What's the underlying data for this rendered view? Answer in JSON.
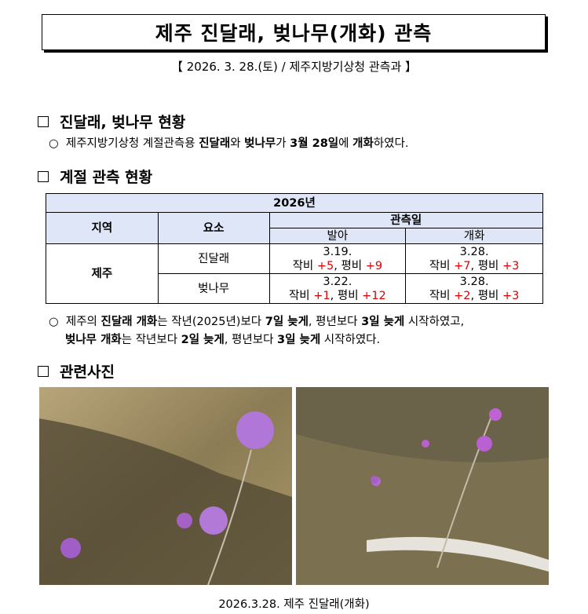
{
  "title": "제주 진달래, 벚나무(개화) 관측",
  "subtitle": "【 2026. 3. 28.(토) / 제주지방기상청 관측과 】",
  "section1": {
    "heading": "진달래, 벚나무 현황",
    "bullet": "○",
    "text": [
      "제주지방기상청 계절관측용 ",
      "진달래",
      "와 ",
      "벚나무",
      "가 ",
      "3월 28일",
      "에 ",
      "개화",
      "하였다."
    ]
  },
  "section2": {
    "heading": "계절 관측 현황",
    "table": {
      "year": "2026년",
      "col_region": "지역",
      "col_element": "요소",
      "col_obs": "관측일",
      "col_bud": "발아",
      "col_bloom": "개화",
      "region": "제주",
      "rows": [
        {
          "element": "진달래",
          "bud_date": "3.19.",
          "bud_prev_label": "작비 ",
          "bud_prev": "+5",
          "bud_norm_label": ", 평비 ",
          "bud_norm": "+9",
          "bloom_date": "3.28.",
          "bloom_prev_label": "작비 ",
          "bloom_prev": "+7",
          "bloom_norm_label": ", 평비 ",
          "bloom_norm": "+3"
        },
        {
          "element": "벚나무",
          "bud_date": "3.22.",
          "bud_prev_label": "작비 ",
          "bud_prev": "+1",
          "bud_norm_label": ", 평비 ",
          "bud_norm": "+12",
          "bloom_date": "3.28.",
          "bloom_prev_label": "작비 ",
          "bloom_prev": "+2",
          "bloom_norm_label": ", 평비 ",
          "bloom_norm": "+3"
        }
      ]
    },
    "note": {
      "bullet": "○",
      "line1": [
        "제주의 ",
        "진달래 개화",
        "는 작년(2025년)보다 ",
        "7일 늦게",
        ", 평년보다 ",
        "3일 늦게",
        " 시작하였고,"
      ],
      "line2": [
        "벚나무 개화",
        "는 작년보다 ",
        "2일 늦게",
        ", 평년보다 ",
        "3일 늦게",
        " 시작하였다."
      ]
    }
  },
  "section3": {
    "heading": "관련사진",
    "caption": "2026.3.28. 제주 진달래(개화)"
  },
  "colors": {
    "header_bg": "#dfe6f7",
    "delta_red": "#e00000"
  }
}
